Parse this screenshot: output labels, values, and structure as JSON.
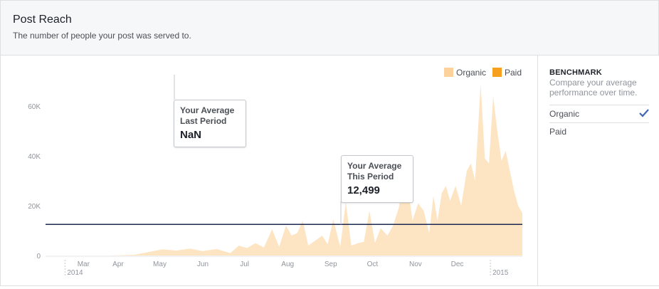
{
  "header": {
    "title": "Post Reach",
    "subtitle": "The number of people your post was served to."
  },
  "legend": {
    "organic": "Organic",
    "paid": "Paid"
  },
  "benchmark": {
    "title": "BENCHMARK",
    "description": "Compare your average performance over time.",
    "options": [
      {
        "label": "Organic",
        "checked": true
      },
      {
        "label": "Paid",
        "checked": false
      }
    ]
  },
  "tooltips": {
    "last_period": {
      "line1": "Your Average",
      "line2": "Last Period",
      "value": "NaN"
    },
    "this_period": {
      "line1": "Your Average",
      "line2": "This Period",
      "value": "12,499"
    }
  },
  "colors": {
    "organic": "#fde4c3",
    "organic_legend": "#fcd19b",
    "paid": "#f7a01d",
    "average_line": "#1d2951",
    "check": "#4267b2"
  },
  "chart_data": {
    "type": "area",
    "title": "Post Reach",
    "subtitle": "The number of people your post was served to.",
    "y_ticks": [
      "0",
      "20K",
      "40K",
      "60K"
    ],
    "y_tick_values": [
      0,
      20000,
      40000,
      60000
    ],
    "ylim": [
      0,
      70000
    ],
    "xlim": [
      "2014-02-15",
      "2015-01-24"
    ],
    "x_ticks": [
      {
        "label": "Mar",
        "date": "2014-03-01",
        "sublabel": "2014"
      },
      {
        "label": "Apr",
        "date": "2014-04-01"
      },
      {
        "label": "May",
        "date": "2014-05-01"
      },
      {
        "label": "Jun",
        "date": "2014-06-01"
      },
      {
        "label": "Jul",
        "date": "2014-07-01"
      },
      {
        "label": "Aug",
        "date": "2014-08-01"
      },
      {
        "label": "Sep",
        "date": "2014-09-01"
      },
      {
        "label": "Oct",
        "date": "2014-10-01"
      },
      {
        "label": "Nov",
        "date": "2014-11-01"
      },
      {
        "label": "Dec",
        "date": "2014-12-01"
      },
      {
        "label": "",
        "date": "2015-01-01",
        "sublabel": "2015"
      }
    ],
    "average_this_period": 12499,
    "average_last_period": "NaN",
    "legend_position": "top-right",
    "series": [
      {
        "name": "Organic",
        "points": [
          [
            "2014-02-15",
            0
          ],
          [
            "2014-04-01",
            0
          ],
          [
            "2014-04-20",
            300
          ],
          [
            "2014-05-01",
            1500
          ],
          [
            "2014-05-10",
            2500
          ],
          [
            "2014-05-20",
            2000
          ],
          [
            "2014-05-30",
            2800
          ],
          [
            "2014-06-08",
            1800
          ],
          [
            "2014-06-18",
            2600
          ],
          [
            "2014-06-28",
            1000
          ],
          [
            "2014-07-04",
            4000
          ],
          [
            "2014-07-10",
            3000
          ],
          [
            "2014-07-16",
            5000
          ],
          [
            "2014-07-22",
            3200
          ],
          [
            "2014-07-28",
            10500
          ],
          [
            "2014-08-02",
            3500
          ],
          [
            "2014-08-07",
            12000
          ],
          [
            "2014-08-11",
            8000
          ],
          [
            "2014-08-15",
            9000
          ],
          [
            "2014-08-19",
            14000
          ],
          [
            "2014-08-23",
            4000
          ],
          [
            "2014-08-28",
            6000
          ],
          [
            "2014-09-02",
            8000
          ],
          [
            "2014-09-06",
            4500
          ],
          [
            "2014-09-10",
            14500
          ],
          [
            "2014-09-15",
            3500
          ],
          [
            "2014-09-19",
            21500
          ],
          [
            "2014-09-23",
            4000
          ],
          [
            "2014-09-28",
            5000
          ],
          [
            "2014-10-02",
            5500
          ],
          [
            "2014-10-06",
            18000
          ],
          [
            "2014-10-10",
            5000
          ],
          [
            "2014-10-14",
            11000
          ],
          [
            "2014-10-19",
            8000
          ],
          [
            "2014-10-23",
            12000
          ],
          [
            "2014-10-27",
            19000
          ],
          [
            "2014-10-31",
            30000
          ],
          [
            "2014-11-03",
            26000
          ],
          [
            "2014-11-06",
            14000
          ],
          [
            "2014-11-10",
            21000
          ],
          [
            "2014-11-14",
            18000
          ],
          [
            "2014-11-18",
            9000
          ],
          [
            "2014-11-21",
            24000
          ],
          [
            "2014-11-24",
            14000
          ],
          [
            "2014-11-27",
            25000
          ],
          [
            "2014-11-30",
            28000
          ],
          [
            "2014-12-03",
            22000
          ],
          [
            "2014-12-07",
            28000
          ],
          [
            "2014-12-11",
            20000
          ],
          [
            "2014-12-15",
            34000
          ],
          [
            "2014-12-18",
            37000
          ],
          [
            "2014-12-21",
            30000
          ],
          [
            "2014-12-25",
            69000
          ],
          [
            "2014-12-28",
            39000
          ],
          [
            "2014-12-31",
            37000
          ],
          [
            "2015-01-03",
            64000
          ],
          [
            "2015-01-06",
            50000
          ],
          [
            "2015-01-09",
            38000
          ],
          [
            "2015-01-12",
            42000
          ],
          [
            "2015-01-15",
            34000
          ],
          [
            "2015-01-18",
            26000
          ],
          [
            "2015-01-21",
            20000
          ],
          [
            "2015-01-24",
            17000
          ]
        ]
      },
      {
        "name": "Paid",
        "points": []
      }
    ]
  }
}
